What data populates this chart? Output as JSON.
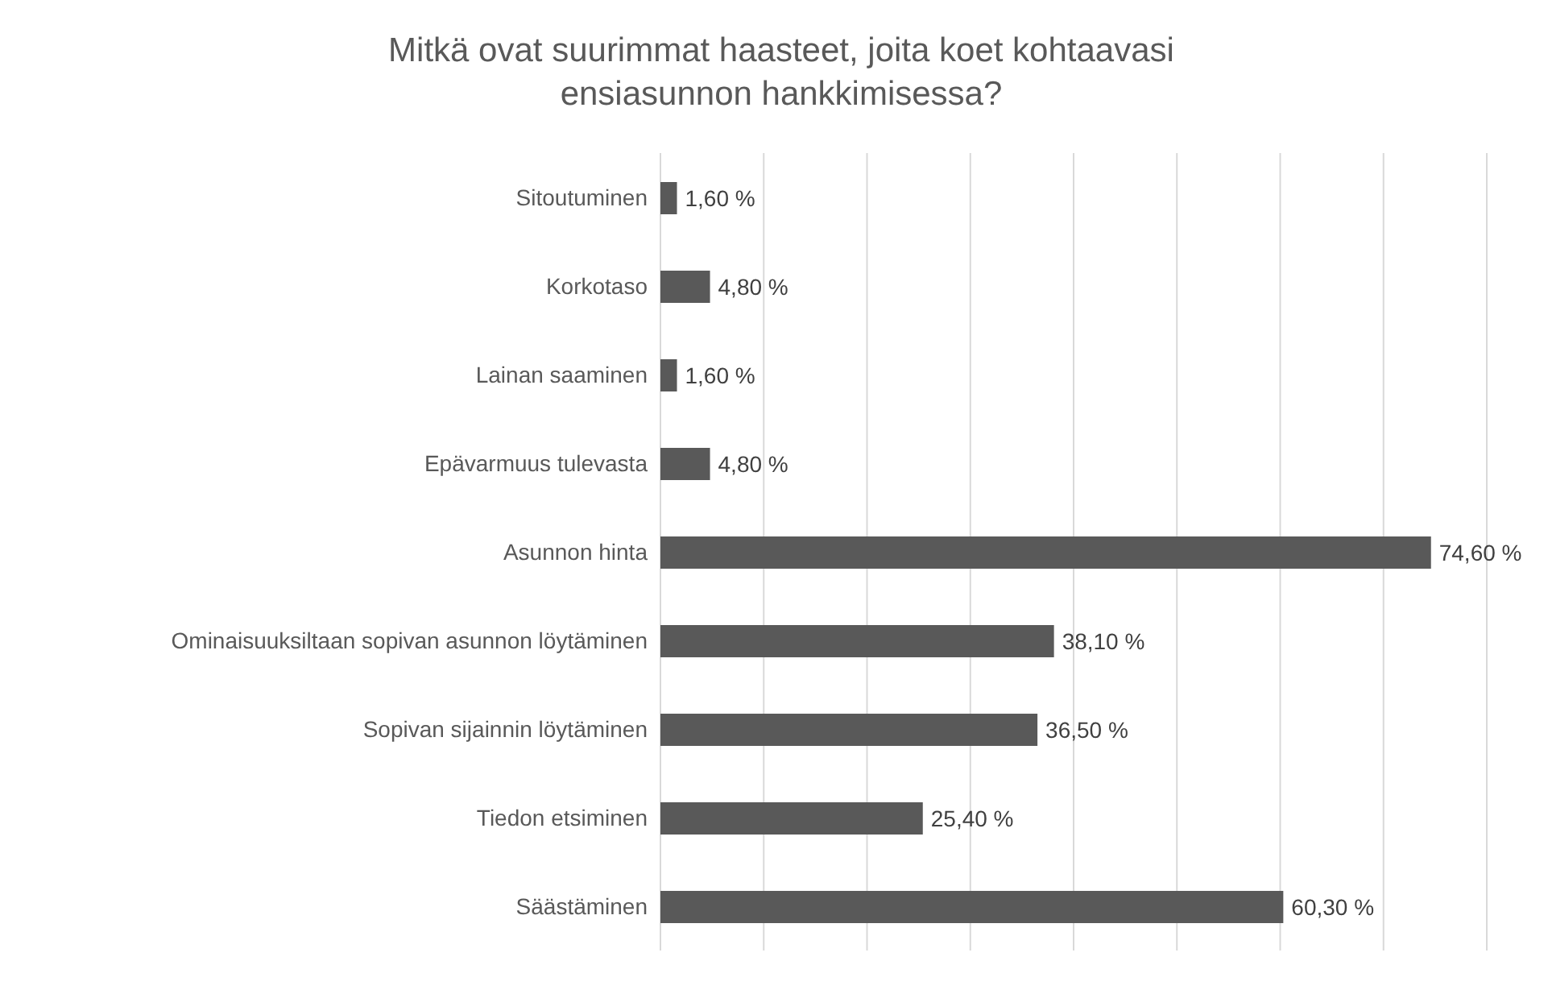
{
  "chart_data": {
    "type": "bar",
    "orientation": "horizontal",
    "title": "Mitkä ovat suurimmat haasteet, joita koet kohtaavasi ensiasunnon hankkimisessa?",
    "categories": [
      "Sitoutuminen",
      "Korkotaso",
      "Lainan saaminen",
      "Epävarmuus tulevasta",
      "Asunnon hinta",
      "Ominaisuuksiltaan sopivan asunnon löytäminen",
      "Sopivan sijainnin löytäminen",
      "Tiedon etsiminen",
      "Säästäminen"
    ],
    "values": [
      1.6,
      4.8,
      1.6,
      4.8,
      74.6,
      38.1,
      36.5,
      25.4,
      60.3
    ],
    "value_labels": [
      "1,60 %",
      "4,80 %",
      "1,60 %",
      "4,80 %",
      "74,60 %",
      "38,10 %",
      "36,50 %",
      "25,40 %",
      "60,30 %"
    ],
    "color": "#595959",
    "xlim": [
      0,
      80
    ],
    "xticks": [
      {
        "value": 0,
        "label": null
      },
      {
        "value": 10,
        "label": null
      },
      {
        "value": 20,
        "label": null
      },
      {
        "value": 30,
        "label": null
      },
      {
        "value": 40,
        "label": null
      },
      {
        "value": 50,
        "label": null
      },
      {
        "value": 60,
        "label": null
      },
      {
        "value": 70,
        "label": null
      },
      {
        "value": 80,
        "label": null
      }
    ],
    "grid": "x",
    "tick_labels": "y",
    "legend": false
  }
}
